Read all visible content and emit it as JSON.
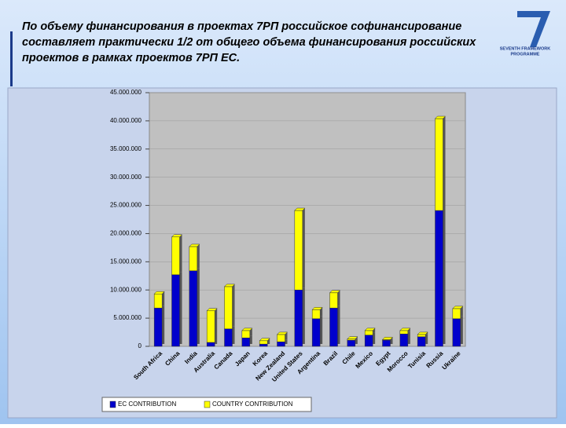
{
  "header": {
    "title_lines": [
      "По объему финансирования в проектах 7РП российское софинансирование",
      "составляет практически 1/2 от общего объема финансирования российских",
      "проектов в рамках проектов 7РП ЕС."
    ],
    "logo_lines": [
      "SEVENTH FRAMEWORK",
      "PROGRAMME"
    ]
  },
  "chart_data": {
    "type": "stacked_bar",
    "categories": [
      "South Africa",
      "China",
      "India",
      "Australia",
      "Canada",
      "Japan",
      "Korea",
      "New Zealand",
      "United States",
      "Argentina",
      "Brazil",
      "Chile",
      "Mexico",
      "Egypt",
      "Morocco",
      "Tunisia",
      "Russia",
      "Ukraine"
    ],
    "series": [
      {
        "name": "EC CONTRIBUTION",
        "color": "#0000cc",
        "values": [
          6800000,
          12700000,
          13400000,
          700000,
          3100000,
          1500000,
          400000,
          800000,
          10000000,
          4900000,
          6800000,
          1100000,
          2000000,
          1100000,
          2200000,
          1700000,
          24100000,
          4900000
        ]
      },
      {
        "name": "COUNTRY CONTRIBUTION",
        "color": "#ffff00",
        "values": [
          2500000,
          6700000,
          4300000,
          5600000,
          7500000,
          1300000,
          600000,
          1300000,
          14100000,
          1600000,
          2700000,
          200000,
          800000,
          100000,
          600000,
          400000,
          16300000,
          1800000
        ]
      }
    ],
    "ylim": [
      0,
      45000000
    ],
    "yticks": [
      0,
      {
        "value": 5000000,
        "label": "5.000.000"
      },
      {
        "value": 10000000,
        "label": "10.000.000"
      },
      {
        "value": 15000000,
        "label": "15.000.000"
      },
      {
        "value": 20000000,
        "label": "20.000.000"
      },
      {
        "value": 25000000,
        "label": "25.000.000"
      },
      {
        "value": 30000000,
        "label": "30.000.000"
      },
      {
        "value": 35000000,
        "label": "35.000.000"
      },
      {
        "value": 40000000,
        "label": "40.000.000"
      },
      {
        "value": 45000000,
        "label": "45.000.000"
      }
    ],
    "grid": true
  }
}
